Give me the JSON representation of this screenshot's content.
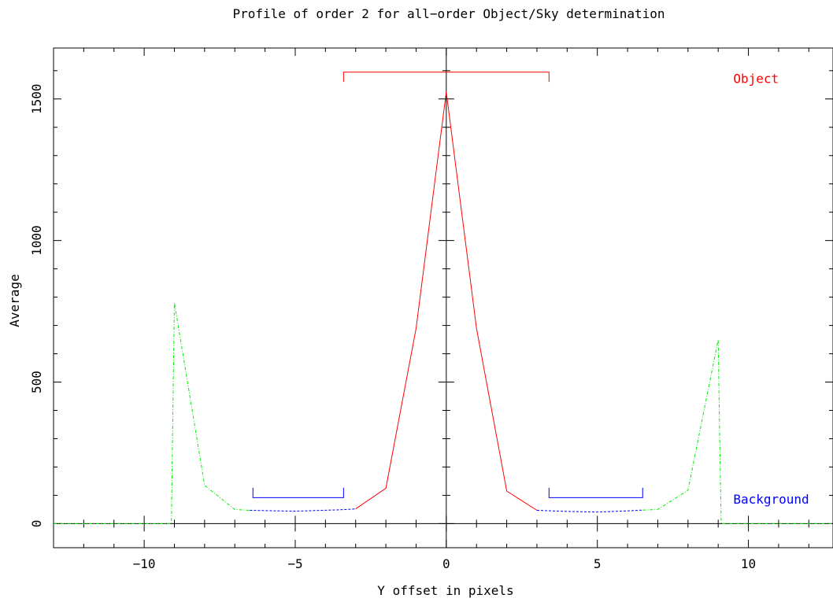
{
  "chart_data": {
    "type": "line",
    "title": "Profile of order 2 for all−order Object/Sky determination",
    "xlabel": "Y offset in pixels",
    "ylabel": "Average",
    "xlim": [
      -13,
      12.8
    ],
    "ylim": [
      -85,
      1680
    ],
    "x_ticks": [
      -10,
      -5,
      0,
      5,
      10
    ],
    "x_tick_labels": [
      "−10",
      "−5",
      "0",
      "5",
      "10"
    ],
    "y_ticks": [
      0,
      500,
      1000,
      1500
    ],
    "y_tick_labels": [
      "0",
      "500",
      "1000",
      "1500"
    ],
    "zero_lines": true,
    "series": [
      {
        "role": "object",
        "color": "#ff0000",
        "style": "solid",
        "points": [
          [
            -3.0,
            52
          ],
          [
            -2.0,
            125
          ],
          [
            -1.0,
            690
          ],
          [
            0.0,
            1525
          ],
          [
            1.0,
            690
          ],
          [
            2.0,
            115
          ],
          [
            3.0,
            47
          ]
        ]
      },
      {
        "role": "background",
        "color": "#0000ff",
        "style": "dashed",
        "points": [
          [
            -6.5,
            47
          ],
          [
            -5.0,
            44
          ],
          [
            -3.5,
            49
          ],
          [
            -3.0,
            52
          ]
        ]
      },
      {
        "role": "background",
        "color": "#0000ff",
        "style": "dashed",
        "points": [
          [
            3.0,
            47
          ],
          [
            4.0,
            43
          ],
          [
            5.0,
            41
          ],
          [
            6.0,
            45
          ],
          [
            6.5,
            48
          ]
        ]
      },
      {
        "role": "excluded",
        "color": "#00ee00",
        "style": "dashdot",
        "points": [
          [
            -13,
            0
          ],
          [
            -9.1,
            0
          ],
          [
            -9.05,
            400
          ],
          [
            -9.0,
            780
          ],
          [
            -8.0,
            135
          ],
          [
            -7.0,
            50
          ],
          [
            -6.5,
            47
          ]
        ]
      },
      {
        "role": "excluded",
        "color": "#00ee00",
        "style": "dashdot",
        "points": [
          [
            6.5,
            48
          ],
          [
            7.0,
            50
          ],
          [
            8.0,
            118
          ],
          [
            9.0,
            650
          ],
          [
            9.05,
            300
          ],
          [
            9.1,
            0
          ],
          [
            12.8,
            0
          ]
        ]
      }
    ],
    "regions": [
      {
        "label": "Object",
        "color": "#ff0000",
        "x_start": -3.4,
        "x_end": 3.4,
        "y": 1595,
        "tick_down_to": 1560
      },
      {
        "label": "Background",
        "color": "#0000ff",
        "x_start": -6.4,
        "x_end": -3.4,
        "y": 92,
        "tick_up_to": 127
      },
      {
        "label": "Background",
        "color": "#0000ff",
        "x_start": 3.4,
        "x_end": 6.5,
        "y": 92,
        "tick_up_to": 127
      }
    ],
    "annotations": [
      {
        "text": "Object",
        "color": "#ff0000",
        "x": 9.5,
        "y": 1570
      },
      {
        "text": "Background",
        "color": "#0000ff",
        "x": 9.5,
        "y": 85
      }
    ]
  }
}
